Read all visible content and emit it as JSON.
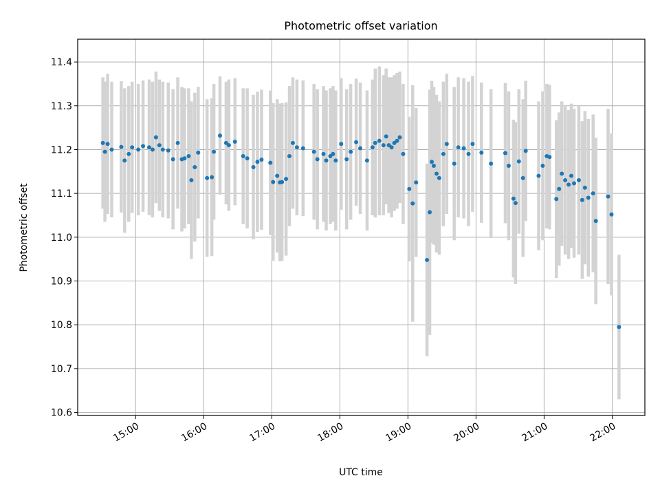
{
  "chart_data": {
    "type": "scatter",
    "title": "Photometric offset variation",
    "xlabel": "UTC time",
    "ylabel": "Photometric offset",
    "xtick_labels": [
      "15:00",
      "16:00",
      "17:00",
      "18:00",
      "19:00",
      "20:00",
      "21:00",
      "22:00"
    ],
    "ytick_labels": [
      "10.6",
      "10.7",
      "10.8",
      "10.9",
      "11.0",
      "11.1",
      "11.2",
      "11.3",
      "11.4"
    ],
    "xlim_hours": [
      14.15,
      22.48
    ],
    "ylim": [
      10.593,
      11.452
    ],
    "grid": true,
    "legend": "none",
    "colors": {
      "marker": "#1f77b4",
      "errorbar": "#d3d3d3",
      "grid": "#b0b0b0"
    },
    "x_hours": [
      14.52,
      14.55,
      14.59,
      14.65,
      14.79,
      14.84,
      14.9,
      14.95,
      15.04,
      15.11,
      15.2,
      15.25,
      15.3,
      15.35,
      15.4,
      15.48,
      15.55,
      15.62,
      15.68,
      15.72,
      15.78,
      15.82,
      15.87,
      15.92,
      16.05,
      16.12,
      16.15,
      16.24,
      16.33,
      16.37,
      16.46,
      16.58,
      16.64,
      16.73,
      16.79,
      16.85,
      16.98,
      17.02,
      17.08,
      17.12,
      17.15,
      17.21,
      17.26,
      17.31,
      17.37,
      17.46,
      17.62,
      17.67,
      17.76,
      17.8,
      17.86,
      17.9,
      17.94,
      18.02,
      18.1,
      18.16,
      18.24,
      18.3,
      18.4,
      18.48,
      18.52,
      18.58,
      18.64,
      18.68,
      18.72,
      18.76,
      18.8,
      18.84,
      18.88,
      18.93,
      19.02,
      19.07,
      19.12,
      19.28,
      19.32,
      19.35,
      19.38,
      19.42,
      19.46,
      19.52,
      19.57,
      19.68,
      19.74,
      19.82,
      19.89,
      19.95,
      20.08,
      20.22,
      20.43,
      20.48,
      20.55,
      20.58,
      20.63,
      20.69,
      20.73,
      20.92,
      20.98,
      21.04,
      21.08,
      21.18,
      21.22,
      21.26,
      21.31,
      21.36,
      21.4,
      21.44,
      21.51,
      21.56,
      21.6,
      21.65,
      21.72,
      21.76,
      21.94,
      21.99,
      22.1
    ],
    "y": [
      11.215,
      11.195,
      11.213,
      11.2,
      11.206,
      11.175,
      11.19,
      11.205,
      11.2,
      11.208,
      11.205,
      11.2,
      11.228,
      11.21,
      11.2,
      11.198,
      11.178,
      11.215,
      11.178,
      11.18,
      11.185,
      11.13,
      11.16,
      11.193,
      11.135,
      11.137,
      11.195,
      11.232,
      11.215,
      11.21,
      11.218,
      11.185,
      11.18,
      11.16,
      11.172,
      11.177,
      11.17,
      11.126,
      11.14,
      11.125,
      11.126,
      11.133,
      11.185,
      11.215,
      11.205,
      11.203,
      11.195,
      11.178,
      11.19,
      11.175,
      11.185,
      11.19,
      11.175,
      11.213,
      11.178,
      11.195,
      11.217,
      11.203,
      11.175,
      11.205,
      11.215,
      11.22,
      11.21,
      11.23,
      11.21,
      11.205,
      11.215,
      11.22,
      11.228,
      11.19,
      11.11,
      11.077,
      11.125,
      10.948,
      11.057,
      11.172,
      11.163,
      11.145,
      11.135,
      11.19,
      11.213,
      11.168,
      11.205,
      11.203,
      11.19,
      11.213,
      11.193,
      11.168,
      11.192,
      11.163,
      11.088,
      11.078,
      11.173,
      11.135,
      11.197,
      11.14,
      11.163,
      11.185,
      11.183,
      11.087,
      11.11,
      11.145,
      11.13,
      11.12,
      11.14,
      11.123,
      11.13,
      11.085,
      11.113,
      11.09,
      11.1,
      11.037,
      11.093,
      11.052,
      10.795
    ],
    "err": [
      0.15,
      0.16,
      0.16,
      0.155,
      0.15,
      0.165,
      0.155,
      0.15,
      0.15,
      0.15,
      0.155,
      0.155,
      0.15,
      0.15,
      0.155,
      0.155,
      0.16,
      0.15,
      0.165,
      0.16,
      0.155,
      0.18,
      0.17,
      0.15,
      0.18,
      0.18,
      0.155,
      0.135,
      0.14,
      0.15,
      0.145,
      0.155,
      0.16,
      0.165,
      0.16,
      0.16,
      0.165,
      0.18,
      0.175,
      0.18,
      0.18,
      0.175,
      0.16,
      0.15,
      0.155,
      0.155,
      0.155,
      0.16,
      0.155,
      0.16,
      0.155,
      0.155,
      0.16,
      0.15,
      0.16,
      0.155,
      0.145,
      0.15,
      0.16,
      0.155,
      0.17,
      0.17,
      0.16,
      0.155,
      0.155,
      0.16,
      0.155,
      0.155,
      0.15,
      0.16,
      0.165,
      0.27,
      0.17,
      0.22,
      0.28,
      0.185,
      0.18,
      0.18,
      0.175,
      0.165,
      0.16,
      0.175,
      0.16,
      0.16,
      0.165,
      0.155,
      0.16,
      0.17,
      0.16,
      0.17,
      0.18,
      0.185,
      0.165,
      0.18,
      0.16,
      0.17,
      0.17,
      0.165,
      0.165,
      0.18,
      0.175,
      0.165,
      0.17,
      0.17,
      0.165,
      0.17,
      0.17,
      0.18,
      0.175,
      0.18,
      0.18,
      0.19,
      0.2,
      0.185,
      0.165
    ]
  }
}
